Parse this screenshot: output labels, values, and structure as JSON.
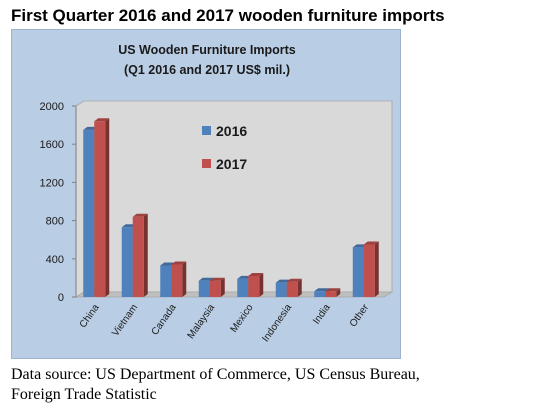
{
  "heading": "First Quarter 2016 and 2017 wooden furniture imports",
  "source_lines": [
    "Data source: US Department of Commerce, US Census Bureau,",
    "Foreign Trade Statistic"
  ],
  "colors": {
    "frame_background": "#b9cde5",
    "plot_background": "#d9d9d9",
    "series_2016": "#4f81bd",
    "series_2017": "#c0504d"
  },
  "chart_data": {
    "type": "bar",
    "title": "US Wooden Furniture Imports",
    "subtitle": "(Q1 2016 and 2017 US$ mil.)",
    "categories": [
      "China",
      "Vietnam",
      "Canada",
      "Malaysia",
      "Mexico",
      "Indonesia",
      "India",
      "Other"
    ],
    "series": [
      {
        "name": "2016",
        "values": [
          1750,
          730,
          330,
          170,
          190,
          150,
          60,
          520
        ]
      },
      {
        "name": "2017",
        "values": [
          1840,
          840,
          340,
          170,
          220,
          160,
          60,
          550
        ]
      }
    ],
    "ylim": [
      0,
      2000
    ],
    "yticks": [
      0,
      400,
      800,
      1200,
      1600,
      2000
    ],
    "ytick_labels": [
      "0",
      "400",
      "800",
      "1200",
      "1600",
      "2000"
    ],
    "xlabel": "",
    "ylabel": "",
    "legend_position": "inside-top-center",
    "grid": false,
    "style": "3d-clustered-column"
  }
}
